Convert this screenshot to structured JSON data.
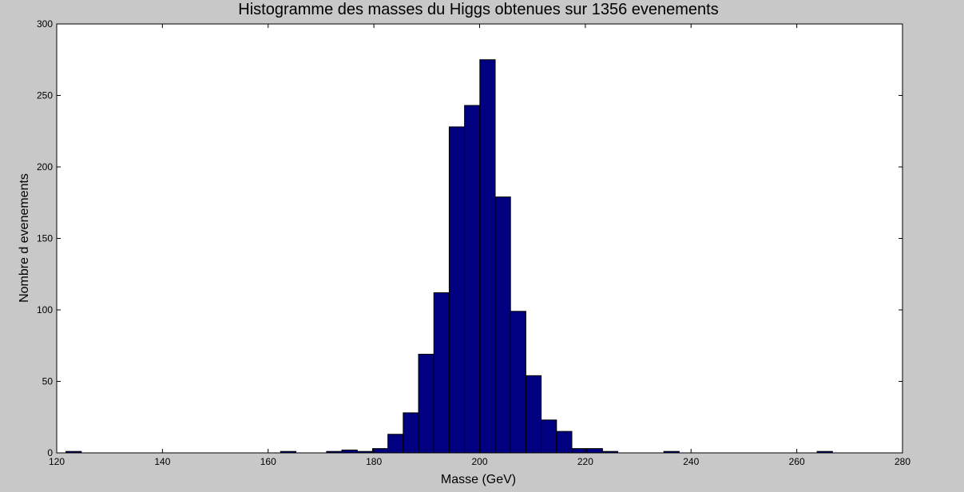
{
  "chart_data": {
    "type": "bar",
    "title": "Histogramme des masses du Higgs obtenues sur 1356 evenements",
    "xlabel": "Masse (GeV)",
    "ylabel": "Nombre d evenements",
    "xlim": [
      120,
      280
    ],
    "ylim": [
      0,
      300
    ],
    "xticks": [
      120,
      140,
      160,
      180,
      200,
      220,
      240,
      260,
      280
    ],
    "yticks": [
      0,
      50,
      100,
      150,
      200,
      250,
      300
    ],
    "bin_width": 2.9,
    "bins": [
      {
        "x": 123.2,
        "value": 1
      },
      {
        "x": 163.8,
        "value": 1
      },
      {
        "x": 172.5,
        "value": 1
      },
      {
        "x": 175.4,
        "value": 2
      },
      {
        "x": 178.3,
        "value": 1
      },
      {
        "x": 181.2,
        "value": 3
      },
      {
        "x": 184.1,
        "value": 13
      },
      {
        "x": 187.0,
        "value": 28
      },
      {
        "x": 189.9,
        "value": 69
      },
      {
        "x": 192.8,
        "value": 112
      },
      {
        "x": 195.7,
        "value": 228
      },
      {
        "x": 198.6,
        "value": 243
      },
      {
        "x": 201.5,
        "value": 275
      },
      {
        "x": 204.4,
        "value": 179
      },
      {
        "x": 207.3,
        "value": 99
      },
      {
        "x": 210.2,
        "value": 54
      },
      {
        "x": 213.1,
        "value": 23
      },
      {
        "x": 216.0,
        "value": 15
      },
      {
        "x": 218.9,
        "value": 3
      },
      {
        "x": 221.8,
        "value": 3
      },
      {
        "x": 224.7,
        "value": 1
      },
      {
        "x": 236.3,
        "value": 1
      },
      {
        "x": 265.3,
        "value": 1
      }
    ],
    "grid": false,
    "bar_color": "#000080",
    "edge_color": "#000000",
    "plot_background": "#ffffff",
    "figure_background": "#c8c8c8"
  }
}
